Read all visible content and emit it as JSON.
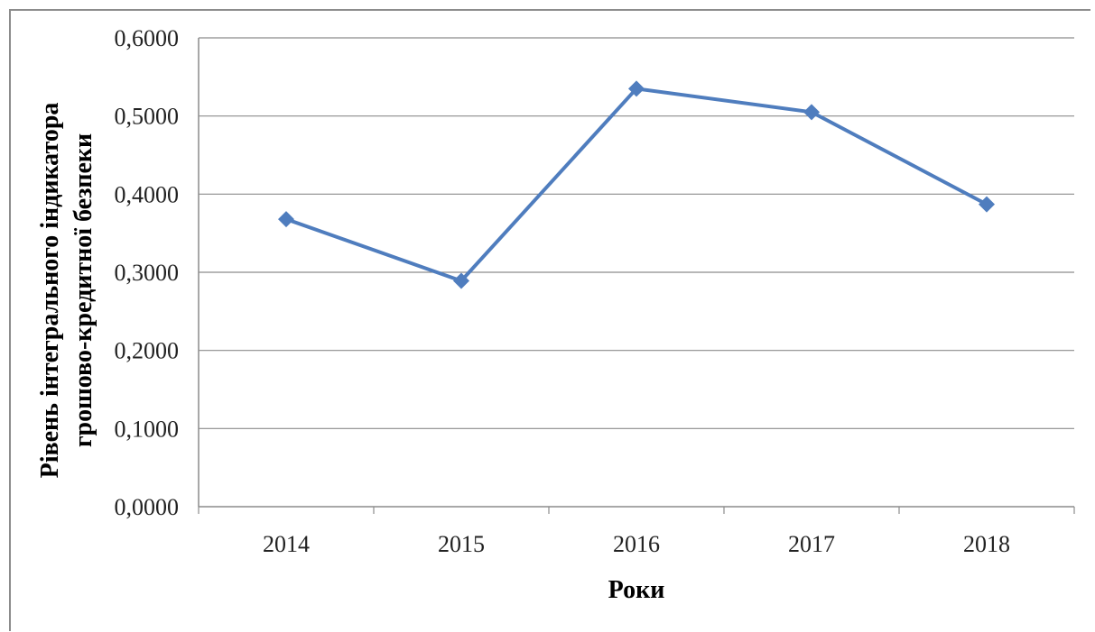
{
  "chart_data": {
    "type": "line",
    "title": "",
    "xlabel": "Роки",
    "ylabel_lines": [
      "Рівень інтегрального індикатора",
      "грошово-кредитної безпеки"
    ],
    "categories": [
      "2014",
      "2015",
      "2016",
      "2017",
      "2018"
    ],
    "series": [
      {
        "values": [
          0.368,
          0.289,
          0.535,
          0.505,
          0.387
        ],
        "color": "#4F7DBE",
        "marker": "diamond"
      }
    ],
    "ylim": [
      0,
      0.6
    ],
    "yticks": [
      0,
      0.1,
      0.2,
      0.3,
      0.4,
      0.5,
      0.6
    ],
    "ytick_labels": [
      "0,0000",
      "0,1000",
      "0,2000",
      "0,3000",
      "0,4000",
      "0,5000",
      "0,6000"
    ],
    "grid": true,
    "legend": "none"
  }
}
